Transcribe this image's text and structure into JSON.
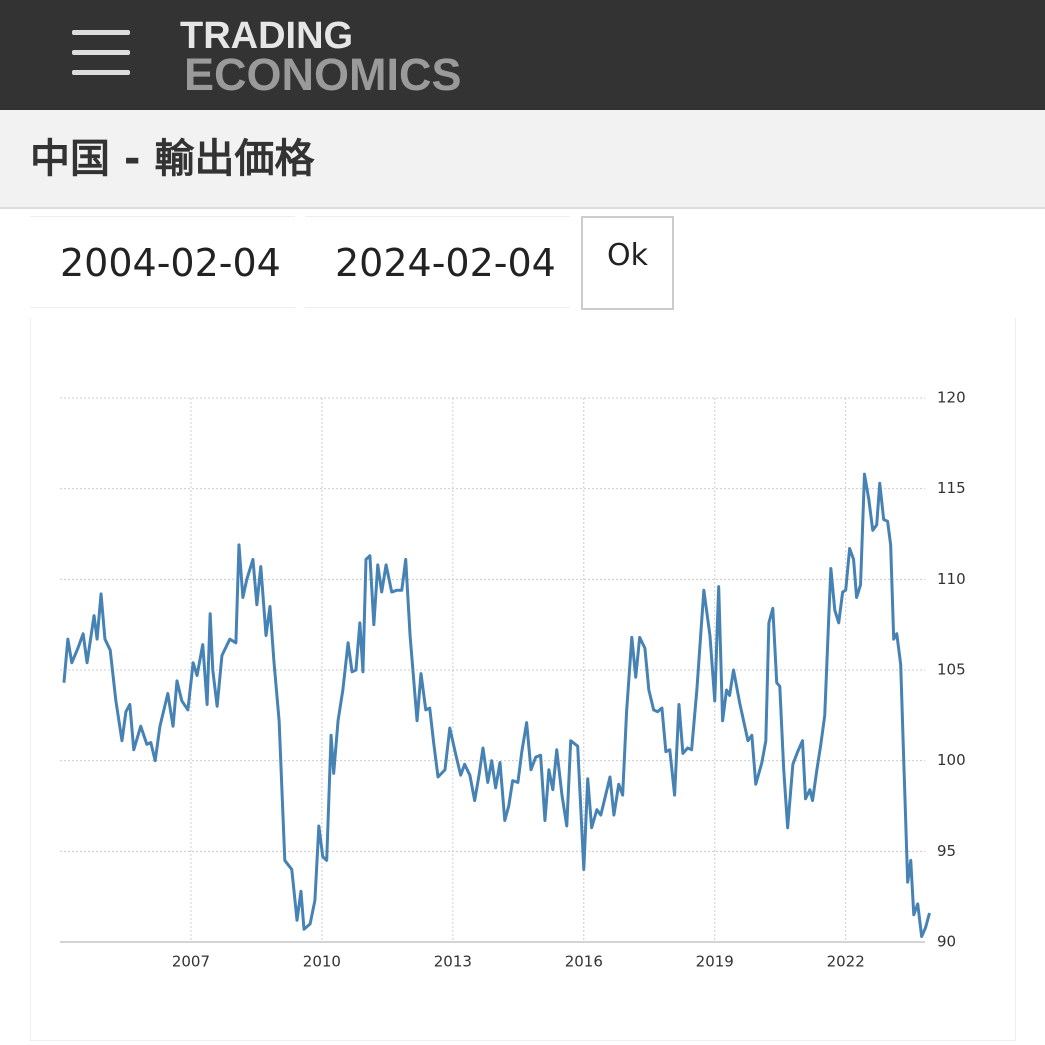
{
  "header": {
    "logo_top": "TRADING",
    "logo_bottom": "ECONOMICS"
  },
  "title": "中国 - 輸出価格",
  "date_range": {
    "start": "2004-02-04",
    "end": "2024-02-04",
    "button": "Ok"
  },
  "chart_data": {
    "type": "line",
    "color": "#4682b4",
    "grid": true,
    "xlim": [
      2004,
      2024
    ],
    "xticks": [
      2007,
      2010,
      2013,
      2016,
      2019,
      2022
    ],
    "ylim": [
      90,
      120
    ],
    "yticks": [
      90,
      95,
      100,
      105,
      110,
      115,
      120
    ],
    "x": [
      2004.09,
      2004.18,
      2004.27,
      2004.41,
      2004.53,
      2004.62,
      2004.78,
      2004.85,
      2004.94,
      2005.03,
      2005.15,
      2005.28,
      2005.42,
      2005.51,
      2005.6,
      2005.69,
      2005.85,
      2005.99,
      2006.08,
      2006.18,
      2006.29,
      2006.47,
      2006.59,
      2006.68,
      2006.79,
      2006.93,
      2007.05,
      2007.14,
      2007.27,
      2007.37,
      2007.44,
      2007.5,
      2007.6,
      2007.71,
      2007.89,
      2008.03,
      2008.1,
      2008.19,
      2008.28,
      2008.42,
      2008.51,
      2008.6,
      2008.72,
      2008.81,
      2008.9,
      2009.02,
      2009.15,
      2009.31,
      2009.43,
      2009.52,
      2009.59,
      2009.73,
      2009.84,
      2009.93,
      2010.02,
      2010.11,
      2010.21,
      2010.27,
      2010.37,
      2010.48,
      2010.6,
      2010.69,
      2010.78,
      2010.87,
      2010.94,
      2011.01,
      2011.1,
      2011.19,
      2011.28,
      2011.37,
      2011.47,
      2011.6,
      2011.72,
      2011.83,
      2011.92,
      2012.02,
      2012.18,
      2012.27,
      2012.38,
      2012.47,
      2012.56,
      2012.66,
      2012.82,
      2012.93,
      2013.07,
      2013.18,
      2013.27,
      2013.39,
      2013.5,
      2013.6,
      2013.69,
      2013.8,
      2013.89,
      2013.98,
      2014.08,
      2014.19,
      2014.28,
      2014.37,
      2014.49,
      2014.58,
      2014.69,
      2014.79,
      2014.9,
      2015.01,
      2015.11,
      2015.2,
      2015.29,
      2015.38,
      2015.5,
      2015.61,
      2015.7,
      2015.86,
      2016.0,
      2016.09,
      2016.18,
      2016.3,
      2016.39,
      2016.5,
      2016.6,
      2016.69,
      2016.8,
      2016.89,
      2016.98,
      2017.1,
      2017.19,
      2017.28,
      2017.4,
      2017.49,
      2017.6,
      2017.69,
      2017.79,
      2017.88,
      2017.97,
      2018.08,
      2018.18,
      2018.27,
      2018.38,
      2018.47,
      2018.59,
      2018.75,
      2018.89,
      2019.0,
      2019.09,
      2019.18,
      2019.27,
      2019.34,
      2019.43,
      2019.57,
      2019.76,
      2019.85,
      2019.94,
      2020.08,
      2020.17,
      2020.24,
      2020.33,
      2020.42,
      2020.49,
      2020.58,
      2020.67,
      2020.79,
      2020.9,
      2021.01,
      2021.08,
      2021.18,
      2021.24,
      2021.34,
      2021.43,
      2021.52,
      2021.61,
      2021.66,
      2021.75,
      2021.84,
      2021.93,
      2022.0,
      2022.09,
      2022.18,
      2022.25,
      2022.34,
      2022.43,
      2022.53,
      2022.62,
      2022.71,
      2022.78,
      2022.87,
      2022.96,
      2023.03,
      2023.1,
      2023.17,
      2023.26,
      2023.33,
      2023.42,
      2023.49,
      2023.56,
      2023.65,
      2023.74,
      2023.83,
      2023.92
    ],
    "values": [
      104.3,
      106.7,
      105.4,
      106.2,
      107.0,
      105.4,
      108.0,
      106.7,
      109.2,
      106.7,
      106.1,
      103.3,
      101.1,
      102.7,
      103.1,
      100.6,
      101.9,
      100.9,
      101.0,
      100.0,
      101.9,
      103.7,
      101.9,
      104.4,
      103.3,
      102.8,
      105.4,
      104.7,
      106.4,
      103.1,
      108.1,
      105.0,
      103.0,
      105.8,
      106.7,
      106.5,
      111.9,
      109.0,
      110.0,
      111.1,
      108.6,
      110.7,
      106.9,
      108.5,
      105.5,
      102.2,
      94.5,
      94.0,
      91.2,
      92.8,
      90.7,
      91.0,
      92.3,
      96.4,
      94.7,
      94.5,
      101.4,
      99.3,
      102.2,
      103.9,
      106.5,
      104.9,
      105.0,
      107.6,
      104.9,
      111.1,
      111.3,
      107.5,
      110.8,
      109.3,
      110.8,
      109.3,
      109.4,
      109.4,
      111.1,
      106.9,
      102.2,
      104.8,
      102.8,
      102.9,
      101.0,
      99.1,
      99.5,
      101.8,
      100.3,
      99.2,
      99.8,
      99.2,
      97.8,
      99.2,
      100.7,
      98.8,
      100.0,
      98.5,
      99.9,
      96.7,
      97.5,
      98.9,
      98.8,
      100.5,
      102.1,
      99.5,
      100.2,
      100.3,
      96.7,
      99.5,
      98.4,
      100.6,
      98.1,
      96.4,
      101.1,
      100.8,
      94.0,
      99.0,
      96.3,
      97.3,
      97.0,
      98.1,
      99.1,
      97.0,
      98.7,
      98.1,
      102.7,
      106.8,
      104.6,
      106.8,
      106.2,
      103.9,
      102.8,
      102.7,
      102.9,
      100.5,
      100.6,
      98.1,
      103.1,
      100.4,
      100.7,
      100.6,
      103.9,
      109.4,
      106.9,
      103.3,
      109.6,
      102.2,
      103.9,
      103.6,
      105.0,
      103.2,
      101.1,
      101.4,
      98.7,
      99.9,
      101.1,
      107.6,
      108.4,
      104.3,
      104.1,
      99.5,
      96.3,
      99.8,
      100.5,
      101.1,
      97.9,
      98.4,
      97.8,
      99.5,
      100.9,
      102.5,
      107.8,
      110.6,
      108.3,
      107.6,
      109.3,
      109.4,
      111.7,
      111.1,
      109.0,
      109.7,
      115.8,
      114.4,
      112.7,
      113.0,
      115.3,
      113.3,
      113.2,
      111.9,
      106.7,
      107.0,
      105.3,
      100.0,
      93.3,
      94.5,
      91.5,
      92.1,
      90.3,
      90.8,
      91.6
    ]
  }
}
